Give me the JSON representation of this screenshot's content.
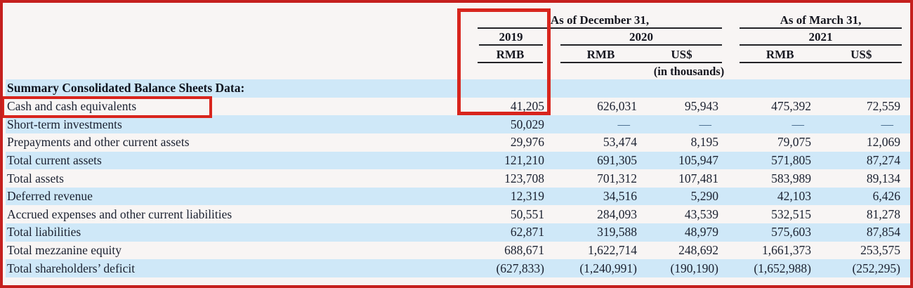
{
  "header": {
    "groups": [
      {
        "label": "As of December 31,"
      },
      {
        "label": "As of March 31,"
      }
    ],
    "years": [
      "2019",
      "2020",
      "2021"
    ],
    "currencies": [
      "RMB",
      "RMB",
      "US$",
      "RMB",
      "US$"
    ],
    "units_note": "(in thousands)"
  },
  "rows": [
    {
      "label": "Summary Consolidated Balance Sheets Data:",
      "values": [
        "",
        "",
        "",
        "",
        ""
      ]
    },
    {
      "label": "Cash and cash equivalents",
      "values": [
        "41,205",
        "626,031",
        "95,943",
        "475,392",
        "72,559"
      ]
    },
    {
      "label": "Short-term investments",
      "values": [
        "50,029",
        "—",
        "—",
        "—",
        "—"
      ]
    },
    {
      "label": "Prepayments and other current assets",
      "values": [
        "29,976",
        "53,474",
        "8,195",
        "79,075",
        "12,069"
      ]
    },
    {
      "label": "Total current assets",
      "values": [
        "121,210",
        "691,305",
        "105,947",
        "571,805",
        "87,274"
      ]
    },
    {
      "label": "Total assets",
      "values": [
        "123,708",
        "701,312",
        "107,481",
        "583,989",
        "89,134"
      ]
    },
    {
      "label": "Deferred revenue",
      "values": [
        "12,319",
        "34,516",
        "5,290",
        "42,103",
        "6,426"
      ]
    },
    {
      "label": "Accrued expenses and other current liabilities",
      "values": [
        "50,551",
        "284,093",
        "43,539",
        "532,515",
        "81,278"
      ]
    },
    {
      "label": "Total liabilities",
      "values": [
        "62,871",
        "319,588",
        "48,979",
        "575,603",
        "87,854"
      ]
    },
    {
      "label": "Total mezzanine equity",
      "values": [
        "688,671",
        "1,622,714",
        "248,692",
        "1,661,373",
        "253,575"
      ]
    },
    {
      "label": "Total shareholders’ deficit",
      "values": [
        "(627,833)",
        "(1,240,991)",
        "(190,190)",
        "(1,652,988)",
        "(252,295)"
      ]
    }
  ],
  "annotations": {
    "column_highlight": "2019 RMB column",
    "row_highlight": "Cash and cash equivalents"
  },
  "colors": {
    "frame_red": "#c5201e",
    "highlight_red": "#d8251d",
    "stripe_blue": "#cfe8f8",
    "rule_black": "#222226",
    "text": "#1b2130",
    "dash_blue": "#3c6185",
    "page_bg": "#f8f5f4"
  }
}
